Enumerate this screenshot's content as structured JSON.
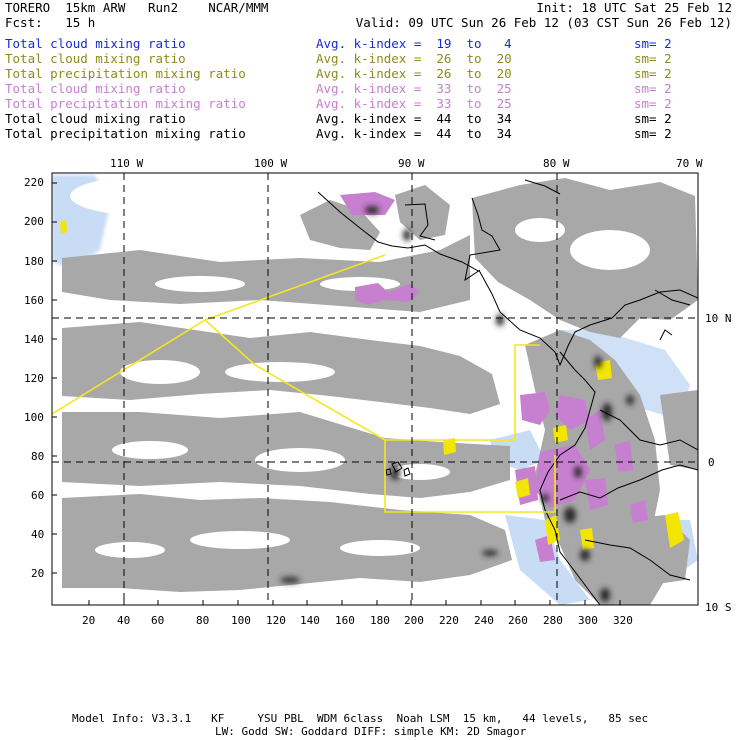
{
  "header": {
    "model": "TORERO  15km ARW   Run2    NCAR/MMM",
    "init": "Init: 18 UTC Sat 25 Feb 12",
    "fcst": "Fcst:   15 h",
    "valid": "Valid: 09 UTC Sun 26 Feb 12 (03 CST Sun 26 Feb 12)"
  },
  "legend": [
    {
      "name": "Total cloud mixing ratio",
      "index": "Avg. k-index =  19  to   4",
      "sm": "sm= 2",
      "color": "#1a2bd6"
    },
    {
      "name": "Total cloud mixing ratio",
      "index": "Avg. k-index =  26  to  20",
      "sm": "sm= 2",
      "color": "#8c8c1e"
    },
    {
      "name": "Total precipitation mixing ratio",
      "index": "Avg. k-index =  26  to  20",
      "sm": "sm= 2",
      "color": "#8c8c1e"
    },
    {
      "name": "Total cloud mixing ratio",
      "index": "Avg. k-index =  33  to  25",
      "sm": "sm= 2",
      "color": "#c77fcf"
    },
    {
      "name": "Total precipitation mixing ratio",
      "index": "Avg. k-index =  33  to  25",
      "sm": "sm= 2",
      "color": "#c77fcf"
    },
    {
      "name": "Total cloud mixing ratio",
      "index": "Avg. k-index =  44  to  34",
      "sm": "sm= 2",
      "color": "#000000"
    },
    {
      "name": "Total precipitation mixing ratio",
      "index": "Avg. k-index =  44  to  34",
      "sm": "sm= 2",
      "color": "#000000"
    }
  ],
  "map": {
    "lon_labels": [
      "110 W",
      "100 W",
      "90 W",
      "80 W",
      "70 W"
    ],
    "lat_labels": [
      "10 N",
      "0",
      "10 S"
    ],
    "x_ticks": [
      "20",
      "40",
      "60",
      "80",
      "100",
      "120",
      "140",
      "160",
      "180",
      "200",
      "220",
      "240",
      "260",
      "280",
      "300",
      "320"
    ],
    "y_ticks": [
      "220",
      "200",
      "180",
      "160",
      "140",
      "120",
      "100",
      "80",
      "60",
      "40",
      "20"
    ],
    "colors": {
      "cloud_gray": "#a8a8a8",
      "precip_purple": "#c77fcf",
      "light_blue": "#c8dcf6",
      "yellow": "#f2e600"
    }
  },
  "footer": {
    "line1": "Model Info: V3.3.1   KF     YSU PBL  WDM 6class  Noah LSM  15 km,   44 levels,   85 sec",
    "line2": "LW: Godd SW: Goddard DIFF: simple KM: 2D Smagor"
  }
}
